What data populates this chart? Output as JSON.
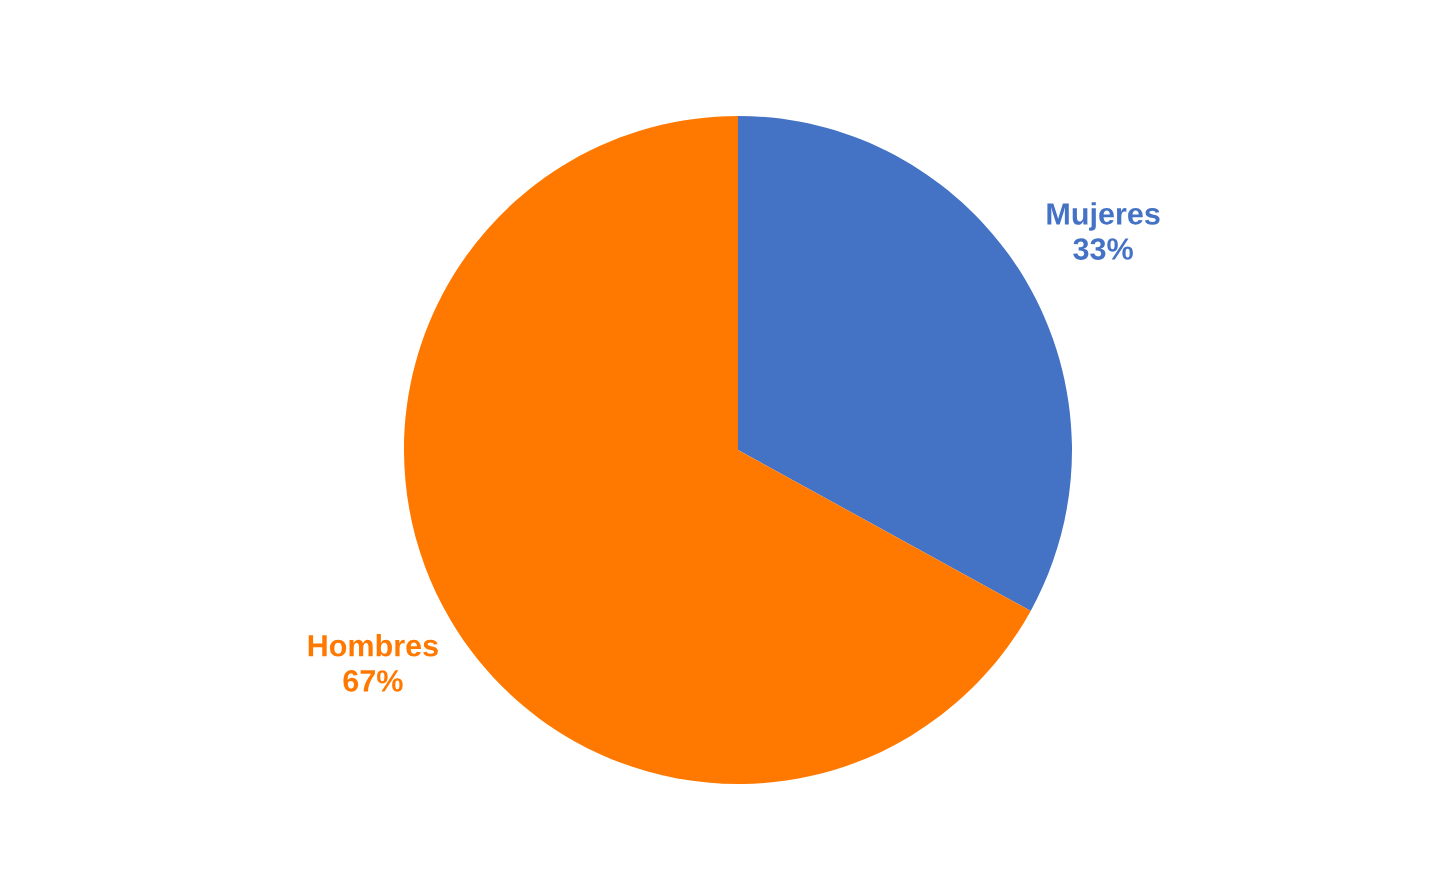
{
  "chart_data": {
    "type": "pie",
    "categories": [
      "Mujeres",
      "Hombres"
    ],
    "values": [
      33,
      67
    ],
    "colors": [
      "#4472c4",
      "#ff7900"
    ],
    "value_labels": [
      "33%",
      "67%"
    ],
    "legend": false
  }
}
